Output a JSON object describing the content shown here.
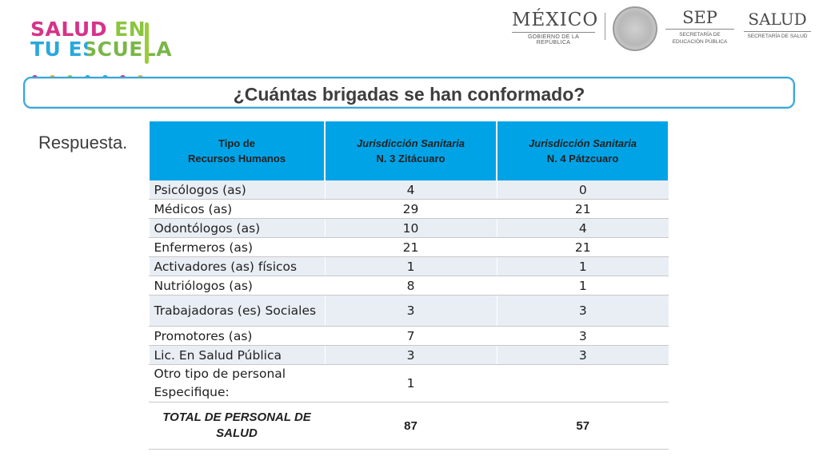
{
  "logo": {
    "line1_a": "SALUD",
    "line1_b": " EN",
    "line2": "TU ESCUELA",
    "colors": {
      "salud": "#d6338a",
      "en": "#8bc53f",
      "tu": "#2aa8de",
      "escuela": "#7ab648"
    },
    "dot_colors": [
      "#d6338a",
      "#f5a623",
      "#8bc53f",
      "#2aa8de",
      "#2aa8de",
      "#d6338a",
      "#f5a623"
    ]
  },
  "header_logos": {
    "mexico_title": "MÉXICO",
    "mexico_sub": "GOBIERNO DE LA REPÚBLICA",
    "sep_title": "SEP",
    "sep_sub1": "SECRETARÍA DE",
    "sep_sub2": "EDUCACIÓN PÚBLICA",
    "salud_title": "SALUD",
    "salud_sub": "SECRETARÍA DE SALUD"
  },
  "title": "¿Cuántas brigadas se han conformado?",
  "respuesta": "Respuesta.",
  "table": {
    "headers": {
      "col1_line1": "Tipo de",
      "col1_line2": "Recursos Humanos",
      "col2_line1": "Jurisdicción Sanitaria",
      "col2_line2": "N. 3 Zitácuaro",
      "col3_line1": "Jurisdicción Sanitaria",
      "col3_line2": "N. 4 Pátzcuaro"
    },
    "rows": [
      {
        "label": "Psicólogos (as)",
        "j3": "4",
        "j4": "0"
      },
      {
        "label": "Médicos (as)",
        "j3": "29",
        "j4": "21"
      },
      {
        "label": "Odontólogos (as)",
        "j3": "10",
        "j4": "4"
      },
      {
        "label": "Enfermeros (as)",
        "j3": "21",
        "j4": "21"
      },
      {
        "label": "Activadores (as) físicos",
        "j3": "1",
        "j4": "1"
      },
      {
        "label": "Nutriólogos (as)",
        "j3": "8",
        "j4": "1"
      },
      {
        "label": "Trabajadoras (es) Sociales",
        "j3": "3",
        "j4": "3"
      },
      {
        "label": "Promotores (as)",
        "j3": "7",
        "j4": "3"
      },
      {
        "label": "Lic. En Salud Pública",
        "j3": "3",
        "j4": "3"
      },
      {
        "label_line1": "Otro tipo de personal",
        "label_line2": "Especifique:",
        "j3": "1",
        "j4": ""
      }
    ],
    "total": {
      "label_line1": "TOTAL DE PERSONAL DE",
      "label_line2": "SALUD",
      "j3": "87",
      "j4": "57"
    }
  }
}
